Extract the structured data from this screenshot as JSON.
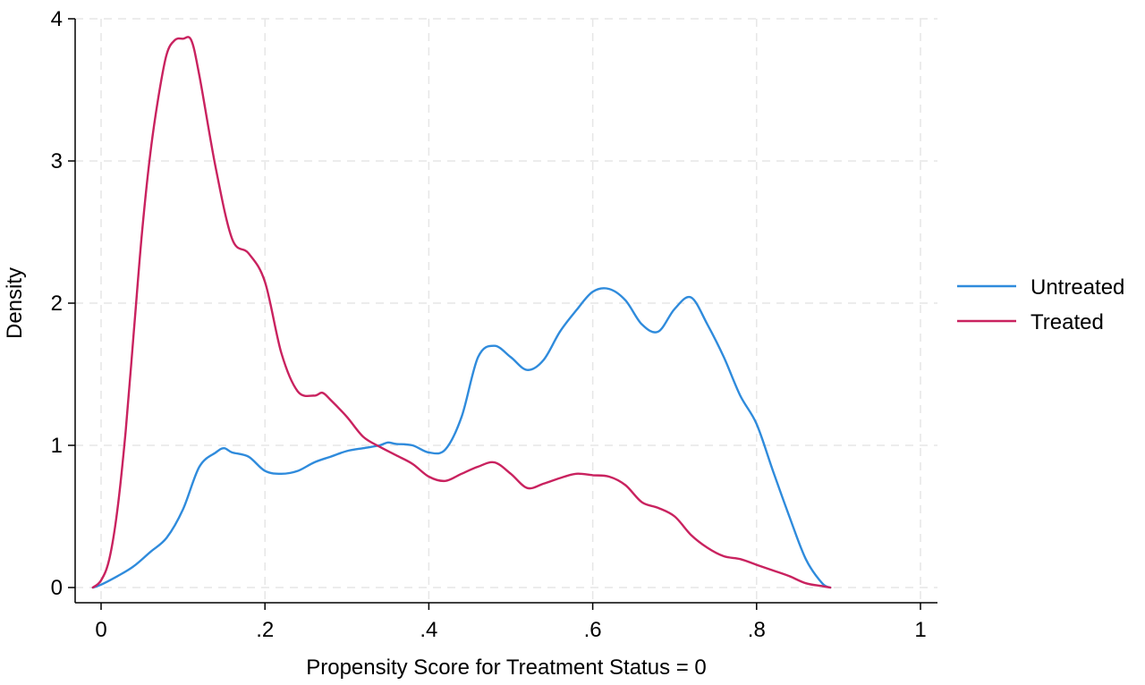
{
  "chart_data": {
    "type": "line",
    "xlabel": "Propensity Score for Treatment Status = 0",
    "ylabel": "Density",
    "xlim": [
      -0.02,
      1.0
    ],
    "ylim": [
      -0.1,
      4.05
    ],
    "x_ticks": [
      0,
      0.2,
      0.4,
      0.6,
      0.8,
      1.0
    ],
    "x_tick_labels": [
      "0",
      ".2",
      ".4",
      ".6",
      ".8",
      "1"
    ],
    "y_ticks": [
      0,
      1,
      2,
      3,
      4
    ],
    "y_tick_labels": [
      "0",
      "1",
      "2",
      "3",
      "4"
    ],
    "grid": true,
    "legend_position": "right",
    "series": [
      {
        "name": "Untreated",
        "color": "#2f8bdc",
        "x": [
          -0.01,
          0.0,
          0.02,
          0.04,
          0.06,
          0.08,
          0.1,
          0.12,
          0.14,
          0.15,
          0.16,
          0.18,
          0.2,
          0.22,
          0.24,
          0.26,
          0.28,
          0.3,
          0.32,
          0.34,
          0.35,
          0.36,
          0.38,
          0.4,
          0.42,
          0.44,
          0.46,
          0.48,
          0.5,
          0.52,
          0.54,
          0.56,
          0.58,
          0.6,
          0.62,
          0.64,
          0.66,
          0.68,
          0.7,
          0.72,
          0.74,
          0.76,
          0.78,
          0.8,
          0.82,
          0.84,
          0.86,
          0.88,
          0.89
        ],
        "values": [
          0.0,
          0.02,
          0.08,
          0.15,
          0.25,
          0.35,
          0.55,
          0.85,
          0.95,
          0.98,
          0.95,
          0.92,
          0.82,
          0.8,
          0.82,
          0.88,
          0.92,
          0.96,
          0.98,
          1.0,
          1.02,
          1.01,
          1.0,
          0.95,
          0.97,
          1.2,
          1.62,
          1.7,
          1.62,
          1.53,
          1.6,
          1.8,
          1.95,
          2.08,
          2.1,
          2.02,
          1.85,
          1.8,
          1.96,
          2.04,
          1.85,
          1.62,
          1.35,
          1.15,
          0.82,
          0.5,
          0.2,
          0.03,
          0.0
        ]
      },
      {
        "name": "Treated",
        "color": "#c9225f",
        "x": [
          -0.01,
          0.0,
          0.01,
          0.02,
          0.03,
          0.04,
          0.05,
          0.06,
          0.07,
          0.08,
          0.09,
          0.1,
          0.11,
          0.12,
          0.14,
          0.16,
          0.18,
          0.2,
          0.22,
          0.24,
          0.26,
          0.27,
          0.28,
          0.3,
          0.32,
          0.34,
          0.36,
          0.38,
          0.4,
          0.42,
          0.44,
          0.46,
          0.48,
          0.5,
          0.52,
          0.54,
          0.56,
          0.58,
          0.6,
          0.62,
          0.64,
          0.66,
          0.68,
          0.7,
          0.72,
          0.74,
          0.76,
          0.78,
          0.8,
          0.82,
          0.84,
          0.86,
          0.88,
          0.89
        ],
        "values": [
          0.0,
          0.05,
          0.2,
          0.55,
          1.1,
          1.8,
          2.5,
          3.05,
          3.45,
          3.75,
          3.85,
          3.86,
          3.85,
          3.6,
          2.95,
          2.45,
          2.35,
          2.15,
          1.65,
          1.38,
          1.35,
          1.37,
          1.32,
          1.2,
          1.06,
          0.99,
          0.93,
          0.87,
          0.78,
          0.75,
          0.8,
          0.85,
          0.88,
          0.8,
          0.7,
          0.73,
          0.77,
          0.8,
          0.79,
          0.78,
          0.72,
          0.6,
          0.56,
          0.5,
          0.37,
          0.28,
          0.22,
          0.2,
          0.16,
          0.12,
          0.08,
          0.03,
          0.01,
          0.0
        ]
      }
    ]
  }
}
